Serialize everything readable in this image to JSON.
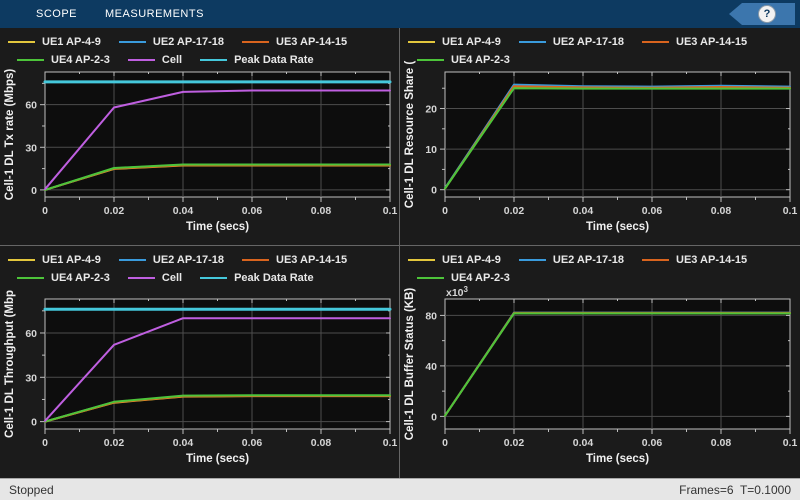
{
  "toolbar": {
    "tabs": [
      "SCOPE",
      "MEASUREMENTS"
    ],
    "help_label": "?"
  },
  "statusbar": {
    "left": "Stopped",
    "right": "Frames=6  T=0.1000"
  },
  "colors": {
    "toolbar_bg": "#0d3a61",
    "help_badge": "#3c76ad",
    "panel_bg": "#1b1b1b",
    "plot_bg": "#0d0d0d",
    "grid": "#4d4d4d",
    "axis": "#bfbfbf",
    "ue1_yellow": "#e3c73d",
    "ue2_blue": "#3a9bdc",
    "ue3_orange": "#d9641e",
    "ue4_green": "#4dc43a",
    "cell_violet": "#bf5fe0",
    "peak_cyan": "#45c8db"
  },
  "chart_data": [
    {
      "type": "line",
      "title": "",
      "ylabel": "Cell-1 DL Tx rate (Mbps)",
      "xlabel": "Time (secs)",
      "x": [
        0,
        0.02,
        0.04,
        0.06,
        0.08,
        0.1
      ],
      "xtick_labels": [
        "0",
        "0.02",
        "0.04",
        "0.06",
        "0.08",
        "0.1"
      ],
      "xlim": [
        0,
        0.1
      ],
      "yticks": [
        0,
        30,
        60
      ],
      "ylim": [
        -5,
        83
      ],
      "grid": true,
      "exponent": null,
      "legend_rows": [
        [
          {
            "label": "UE1 AP-4-9",
            "color": "#e3c73d"
          },
          {
            "label": "UE2 AP-17-18",
            "color": "#3a9bdc"
          },
          {
            "label": "UE3 AP-14-15",
            "color": "#d9641e"
          }
        ],
        [
          {
            "label": "UE4 AP-2-3",
            "color": "#4dc43a"
          },
          {
            "label": "Cell",
            "color": "#bf5fe0"
          },
          {
            "label": "Peak Data Rate",
            "color": "#45c8db"
          }
        ]
      ],
      "series": [
        {
          "name": "UE1 AP-4-9",
          "color": "#e3c73d",
          "width": 2,
          "values": [
            0,
            14.8,
            17.2,
            17.2,
            17.2,
            17.2
          ]
        },
        {
          "name": "UE2 AP-17-18",
          "color": "#3a9bdc",
          "width": 2,
          "values": [
            0,
            15.2,
            17.6,
            17.6,
            17.6,
            17.6
          ]
        },
        {
          "name": "UE3 AP-14-15",
          "color": "#d9641e",
          "width": 2,
          "values": [
            0,
            15.0,
            17.4,
            17.4,
            17.4,
            17.4
          ]
        },
        {
          "name": "UE4 AP-2-3",
          "color": "#4dc43a",
          "width": 2,
          "values": [
            0,
            15.4,
            17.9,
            17.9,
            17.9,
            17.9
          ]
        },
        {
          "name": "Cell",
          "color": "#bf5fe0",
          "width": 2,
          "values": [
            0.5,
            58,
            69,
            70,
            70,
            70
          ]
        },
        {
          "name": "Peak Data Rate",
          "color": "#45c8db",
          "width": 3,
          "values": [
            76,
            76,
            76,
            76,
            76,
            76
          ]
        }
      ]
    },
    {
      "type": "line",
      "title": "",
      "ylabel": "Cell-1 DL Resource Share (",
      "xlabel": "Time (secs)",
      "x": [
        0,
        0.02,
        0.04,
        0.06,
        0.08,
        0.1
      ],
      "xtick_labels": [
        "0",
        "0.02",
        "0.04",
        "0.06",
        "0.08",
        "0.1"
      ],
      "xlim": [
        0,
        0.1
      ],
      "yticks": [
        0,
        10,
        20
      ],
      "ylim": [
        -1.8,
        29
      ],
      "grid": true,
      "exponent": null,
      "legend_rows": [
        [
          {
            "label": "UE1 AP-4-9",
            "color": "#e3c73d"
          },
          {
            "label": "UE2 AP-17-18",
            "color": "#3a9bdc"
          },
          {
            "label": "UE3 AP-14-15",
            "color": "#d9641e"
          }
        ],
        [
          {
            "label": "UE4 AP-2-3",
            "color": "#4dc43a"
          }
        ]
      ],
      "series": [
        {
          "name": "UE1 AP-4-9",
          "color": "#e3c73d",
          "width": 2,
          "values": [
            0.3,
            25.2,
            25.0,
            25.0,
            25.1,
            25.0
          ]
        },
        {
          "name": "UE2 AP-17-18",
          "color": "#3a9bdc",
          "width": 2,
          "values": [
            0.4,
            25.9,
            25.5,
            25.4,
            25.6,
            25.4
          ]
        },
        {
          "name": "UE3 AP-14-15",
          "color": "#d9641e",
          "width": 2,
          "values": [
            0.3,
            25.5,
            25.2,
            25.1,
            25.3,
            25.1
          ]
        },
        {
          "name": "UE4 AP-2-3",
          "color": "#4dc43a",
          "width": 2,
          "values": [
            0.3,
            25.0,
            24.9,
            24.9,
            24.9,
            24.9
          ]
        }
      ]
    },
    {
      "type": "line",
      "title": "",
      "ylabel": "Cell-1 DL Throughput (Mbp",
      "xlabel": "Time (secs)",
      "x": [
        0,
        0.02,
        0.04,
        0.06,
        0.08,
        0.1
      ],
      "xtick_labels": [
        "0",
        "0.02",
        "0.04",
        "0.06",
        "0.08",
        "0.1"
      ],
      "xlim": [
        0,
        0.1
      ],
      "yticks": [
        0,
        30,
        60
      ],
      "ylim": [
        -5,
        83
      ],
      "grid": true,
      "exponent": null,
      "legend_rows": [
        [
          {
            "label": "UE1 AP-4-9",
            "color": "#e3c73d"
          },
          {
            "label": "UE2 AP-17-18",
            "color": "#3a9bdc"
          },
          {
            "label": "UE3 AP-14-15",
            "color": "#d9641e"
          }
        ],
        [
          {
            "label": "UE4 AP-2-3",
            "color": "#4dc43a"
          },
          {
            "label": "Cell",
            "color": "#bf5fe0"
          },
          {
            "label": "Peak Data Rate",
            "color": "#45c8db"
          }
        ]
      ],
      "series": [
        {
          "name": "UE1 AP-4-9",
          "color": "#e3c73d",
          "width": 2,
          "values": [
            0,
            12.8,
            16.9,
            17.3,
            17.3,
            17.3
          ]
        },
        {
          "name": "UE2 AP-17-18",
          "color": "#3a9bdc",
          "width": 2,
          "values": [
            0,
            13.2,
            17.3,
            17.6,
            17.6,
            17.6
          ]
        },
        {
          "name": "UE3 AP-14-15",
          "color": "#d9641e",
          "width": 2,
          "values": [
            0,
            13.0,
            17.1,
            17.4,
            17.4,
            17.4
          ]
        },
        {
          "name": "UE4 AP-2-3",
          "color": "#4dc43a",
          "width": 2,
          "values": [
            0,
            13.4,
            17.6,
            17.9,
            17.9,
            17.9
          ]
        },
        {
          "name": "Cell",
          "color": "#bf5fe0",
          "width": 2,
          "values": [
            0.5,
            52,
            70,
            70,
            70,
            70
          ]
        },
        {
          "name": "Peak Data Rate",
          "color": "#45c8db",
          "width": 3,
          "values": [
            76,
            76,
            76,
            76,
            76,
            76
          ]
        }
      ]
    },
    {
      "type": "line",
      "title": "",
      "ylabel": "Cell-1 DL Buffer Status (KB)",
      "xlabel": "Time (secs)",
      "x": [
        0,
        0.02,
        0.04,
        0.06,
        0.08,
        0.1
      ],
      "xtick_labels": [
        "0",
        "0.02",
        "0.04",
        "0.06",
        "0.08",
        "0.1"
      ],
      "xlim": [
        0,
        0.1
      ],
      "yticks": [
        0,
        40,
        80
      ],
      "ylim": [
        -10,
        93
      ],
      "grid": true,
      "exponent": {
        "text": "x10",
        "sup": "3"
      },
      "legend_rows": [
        [
          {
            "label": "UE1 AP-4-9",
            "color": "#e3c73d"
          },
          {
            "label": "UE2 AP-17-18",
            "color": "#3a9bdc"
          },
          {
            "label": "UE3 AP-14-15",
            "color": "#d9641e"
          }
        ],
        [
          {
            "label": "UE4 AP-2-3",
            "color": "#4dc43a"
          }
        ]
      ],
      "series": [
        {
          "name": "UE1 AP-4-9",
          "color": "#e3c73d",
          "width": 2,
          "values": [
            0.5,
            81.8,
            81.8,
            81.8,
            81.8,
            81.8
          ]
        },
        {
          "name": "UE2 AP-17-18",
          "color": "#3a9bdc",
          "width": 2,
          "values": [
            0.5,
            82.2,
            82.2,
            82.2,
            82.2,
            82.2
          ]
        },
        {
          "name": "UE3 AP-14-15",
          "color": "#d9641e",
          "width": 2,
          "values": [
            0.5,
            82.0,
            82.0,
            82.0,
            82.0,
            82.0
          ]
        },
        {
          "name": "UE4 AP-2-3",
          "color": "#4dc43a",
          "width": 2,
          "values": [
            0.5,
            81.6,
            81.6,
            81.6,
            81.6,
            81.6
          ]
        }
      ]
    }
  ]
}
